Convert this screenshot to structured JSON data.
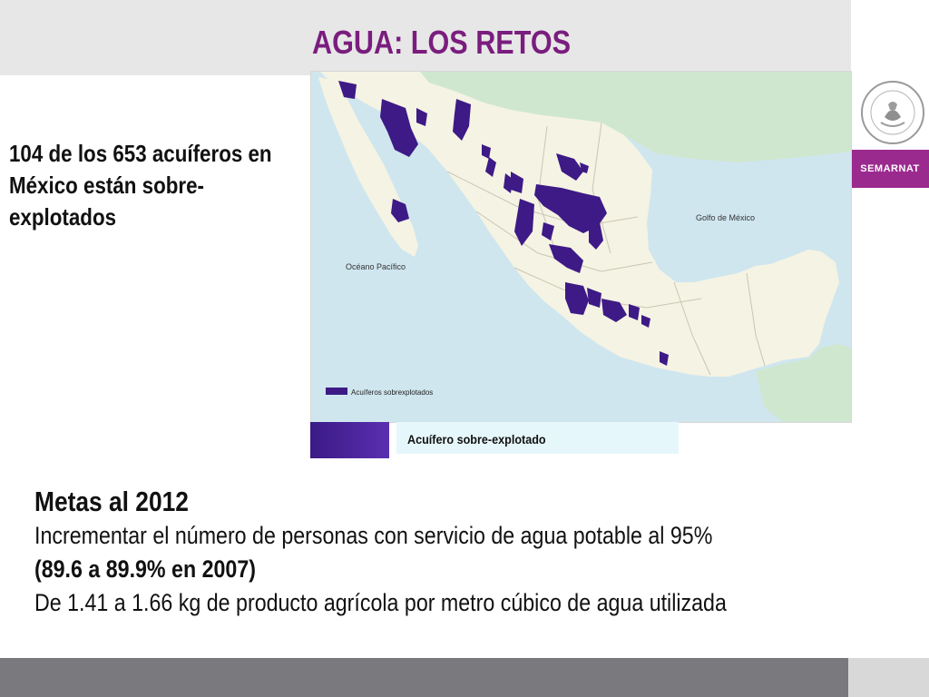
{
  "slide": {
    "title": "AGUA: LOS RETOS",
    "brand": "SEMARNAT",
    "headline": "104 de los 653 acuíferos en México están sobre-explotados"
  },
  "map": {
    "labels": {
      "gulf": "Golfo de México",
      "pacific": "Océano Pacífico",
      "inner_legend": "Acuíferos sobrexplotados"
    },
    "colors": {
      "water": "#cfe6ef",
      "land": "#f5f3e3",
      "usa": "#cfe7cf",
      "central_america": "#cfe7cf",
      "overexploited": "#3d1a86"
    }
  },
  "legend": {
    "label": "Acuífero sobre-explotado"
  },
  "goals": {
    "title": "Metas al 2012",
    "line1": "Incrementar el número de personas con servicio de agua potable al 95%",
    "line2": "(89.6 a 89.9% en 2007)",
    "line3": "De 1.41 a 1.66 kg de producto agrícola por metro cúbico de agua utilizada"
  }
}
